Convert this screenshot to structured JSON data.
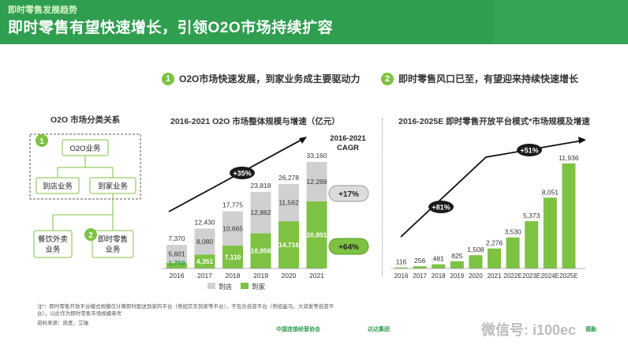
{
  "header": {
    "kicker": "即时零售发展趋势",
    "title": "即时零售有望快速增长，引领O2O市场持续扩容"
  },
  "sections": [
    {
      "num": "1",
      "text": "O2O市场快速发展，到家业务成主要驱动力"
    },
    {
      "num": "2",
      "text": "即时零售风口已至，有望迎来持续快速增长"
    }
  ],
  "diagram": {
    "title": "O2O 市场分类关系",
    "root": "O2O业务",
    "level2": [
      "到店业务",
      "到家业务"
    ],
    "level3": [
      "餐饮外卖业务",
      "即时零售业务"
    ],
    "markers": [
      "1",
      "2"
    ]
  },
  "chart_data": [
    {
      "type": "bar",
      "title": "2016-2021 O2O 市场整体规模与增速（亿元）",
      "categories": [
        "2016",
        "2017",
        "2018",
        "2019",
        "2020",
        "2021"
      ],
      "series": [
        {
          "name": "到家",
          "values": [
            1769,
            4351,
            7110,
            10956,
            14716,
            20891
          ],
          "color": "#7dc242"
        },
        {
          "name": "到店",
          "values": [
            5601,
            8080,
            10665,
            12862,
            11562,
            12269
          ],
          "color": "#d0d0d0"
        }
      ],
      "totals": [
        7370,
        12430,
        17775,
        23818,
        26278,
        33160
      ],
      "growth_label": "+35%",
      "cagr_title": "2016-2021 CAGR",
      "cagr": [
        {
          "series": "到店",
          "value": "+17%"
        },
        {
          "series": "到家",
          "value": "+64%"
        }
      ],
      "legend": [
        "到店",
        "到家"
      ]
    },
    {
      "type": "bar",
      "title": "2016-2025E 即时零售开放平台模式*市场规模及增速",
      "categories": [
        "2016",
        "2017",
        "2018",
        "2019",
        "2020",
        "2021",
        "2022E",
        "2023E",
        "2024E",
        "2025E"
      ],
      "values": [
        116,
        256,
        481,
        825,
        1508,
        2276,
        3530,
        5373,
        8051,
        11936
      ],
      "labels": [
        "116",
        "256",
        "481",
        "825",
        "1,508",
        "2,276",
        "3,530",
        "5,373",
        "8,051",
        "11,936"
      ],
      "growth_labels": [
        "+81%",
        "+51%"
      ],
      "color": "#7dc242"
    }
  ],
  "footer": {
    "note": "注*：即时零售开放平台模式规模仅计算即时配送到家的平台（例如京东到家等平台），不包含自营平台（例如盒马、大润发等自营平台），以此作为即时零售市场规模参考",
    "source": "资料来源：凯度，艾瑞"
  },
  "watermark": "微信号: i100ec",
  "logos": [
    "中国连锁经营协会",
    "达达集团",
    "德勤"
  ]
}
